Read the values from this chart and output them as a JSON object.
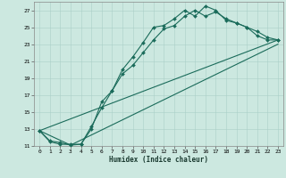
{
  "title": "",
  "xlabel": "Humidex (Indice chaleur)",
  "bg_color": "#cce8e0",
  "line_color": "#1a6b5a",
  "grid_color": "#aacfc8",
  "xlim": [
    -0.5,
    23.5
  ],
  "ylim": [
    11,
    28
  ],
  "xticks": [
    0,
    1,
    2,
    3,
    4,
    5,
    6,
    7,
    8,
    9,
    10,
    11,
    12,
    13,
    14,
    15,
    16,
    17,
    18,
    19,
    20,
    21,
    22,
    23
  ],
  "yticks": [
    11,
    13,
    15,
    17,
    19,
    21,
    23,
    25,
    27
  ],
  "curve1_x": [
    0,
    1,
    2,
    3,
    4,
    5,
    6,
    7,
    8,
    9,
    10,
    11,
    12,
    13,
    14,
    15,
    16,
    17,
    18,
    19,
    20,
    21,
    22,
    23
  ],
  "curve1_y": [
    12.8,
    11.6,
    11.4,
    11.1,
    11.2,
    13.3,
    15.5,
    17.5,
    20.0,
    21.5,
    23.2,
    25.0,
    25.2,
    26.0,
    27.0,
    26.3,
    27.5,
    27.0,
    25.8,
    25.5,
    25.0,
    24.5,
    23.8,
    23.5
  ],
  "curve2_x": [
    0,
    1,
    2,
    3,
    4,
    5,
    6,
    7,
    8,
    9,
    10,
    11,
    12,
    13,
    14,
    15,
    16,
    17,
    18,
    19,
    20,
    21,
    22,
    23
  ],
  "curve2_y": [
    12.8,
    11.5,
    11.2,
    11.2,
    11.2,
    13.0,
    16.2,
    17.5,
    19.5,
    20.5,
    22.0,
    23.5,
    24.8,
    25.2,
    26.3,
    27.0,
    26.3,
    26.8,
    26.0,
    25.5,
    25.0,
    24.0,
    23.5,
    23.5
  ],
  "line1_x": [
    0,
    3,
    23
  ],
  "line1_y": [
    12.8,
    11.1,
    23.0
  ],
  "line2_x": [
    0,
    23
  ],
  "line2_y": [
    12.8,
    23.5
  ]
}
